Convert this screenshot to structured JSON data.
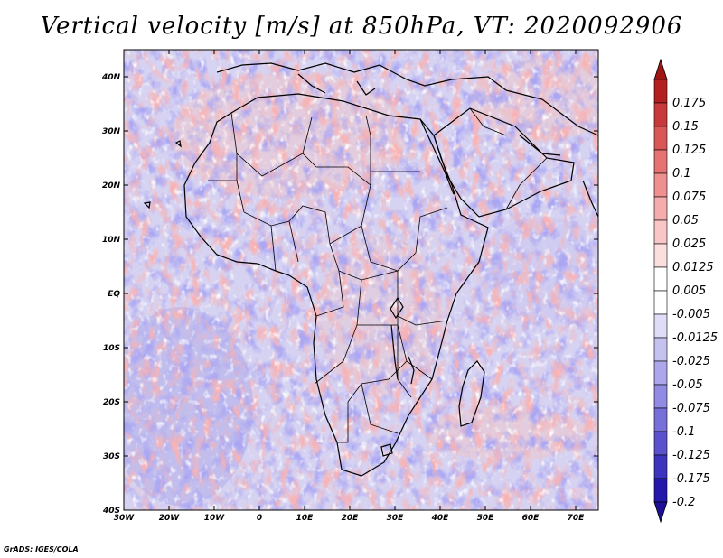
{
  "title": "Vertical velocity [m/s] at 850hPa, VT: 2020092906",
  "credit": "GrADS: IGES/COLA",
  "map": {
    "lon_range": [
      -30,
      75
    ],
    "lat_range": [
      -40,
      45
    ],
    "lat_labels": [
      {
        "value": 40,
        "label": "40N"
      },
      {
        "value": 30,
        "label": "30N"
      },
      {
        "value": 20,
        "label": "20N"
      },
      {
        "value": 10,
        "label": "10N"
      },
      {
        "value": 0,
        "label": "EQ"
      },
      {
        "value": -10,
        "label": "10S"
      },
      {
        "value": -20,
        "label": "20S"
      },
      {
        "value": -30,
        "label": "30S"
      },
      {
        "value": -40,
        "label": "40S"
      }
    ],
    "lon_labels": [
      {
        "value": -30,
        "label": "30W"
      },
      {
        "value": -20,
        "label": "20W"
      },
      {
        "value": -10,
        "label": "10W"
      },
      {
        "value": 0,
        "label": "0"
      },
      {
        "value": 10,
        "label": "10E"
      },
      {
        "value": 20,
        "label": "20E"
      },
      {
        "value": 30,
        "label": "30E"
      },
      {
        "value": 40,
        "label": "40E"
      },
      {
        "value": 50,
        "label": "50E"
      },
      {
        "value": 60,
        "label": "60E"
      },
      {
        "value": 70,
        "label": "70E"
      }
    ]
  },
  "colorbar": {
    "levels": [
      {
        "color": "#b31e1e",
        "label": "0.175"
      },
      {
        "color": "#c83a3a",
        "label": "0.15"
      },
      {
        "color": "#da5757",
        "label": "0.125"
      },
      {
        "color": "#e57373",
        "label": "0.1"
      },
      {
        "color": "#ee9090",
        "label": "0.075"
      },
      {
        "color": "#f4acac",
        "label": "0.05"
      },
      {
        "color": "#f8c6c6",
        "label": "0.025"
      },
      {
        "color": "#fbdede",
        "label": "0.0125"
      },
      {
        "color": "#ffffff",
        "label": "0.005"
      },
      {
        "color": "#ffffff",
        "label": "-0.005"
      },
      {
        "color": "#dedcf6",
        "label": "-0.0125"
      },
      {
        "color": "#c6c2f0",
        "label": "-0.025"
      },
      {
        "color": "#aca6ea",
        "label": "-0.05"
      },
      {
        "color": "#928be3",
        "label": "-0.075"
      },
      {
        "color": "#7870d9",
        "label": "-0.1"
      },
      {
        "color": "#5a52cc",
        "label": "-0.125"
      },
      {
        "color": "#3c34bc",
        "label": "-0.175"
      },
      {
        "color": "#2418aa",
        "label": "-0.2"
      }
    ],
    "top_cap_color": "#a01414",
    "bottom_cap_color": "#1e1096"
  }
}
